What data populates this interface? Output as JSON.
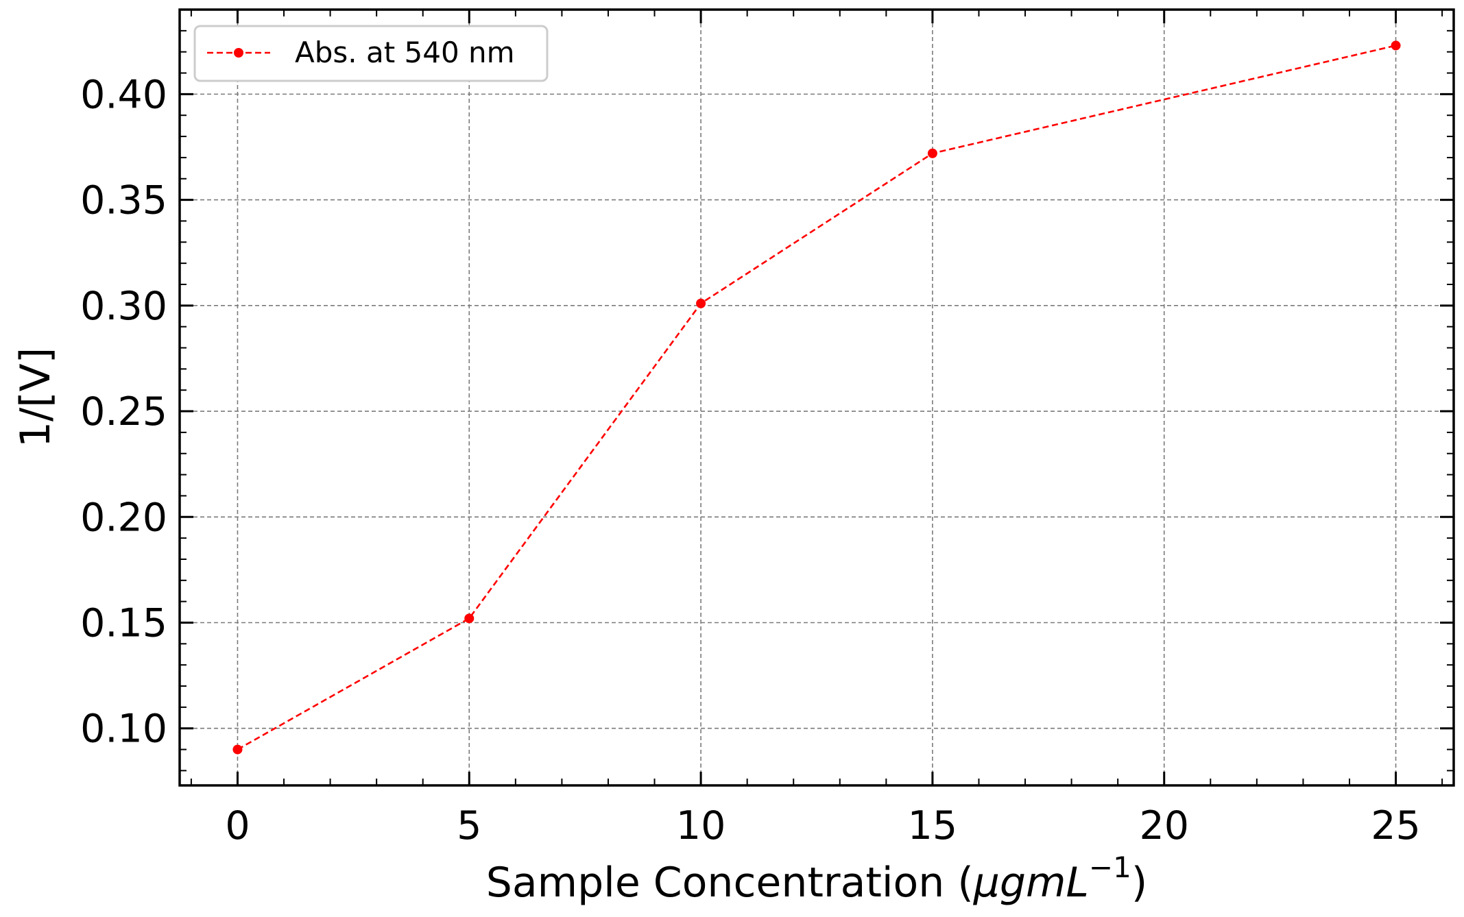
{
  "chart_data": {
    "type": "line",
    "title": "",
    "xlabel": {
      "text": "Sample Concentration (",
      "math": "μgmL",
      "exponent": "−1",
      "close": ")"
    },
    "ylabel": "1/[V]",
    "xlim": [
      -1.25,
      26.25
    ],
    "ylim": [
      0.073,
      0.44
    ],
    "xticks": [
      0,
      5,
      10,
      15,
      20,
      25
    ],
    "xtick_labels": [
      "0",
      "5",
      "10",
      "15",
      "20",
      "25"
    ],
    "yticks": [
      0.1,
      0.15,
      0.2,
      0.25,
      0.3,
      0.35,
      0.4
    ],
    "ytick_labels": [
      "0.10",
      "0.15",
      "0.20",
      "0.25",
      "0.30",
      "0.35",
      "0.40"
    ],
    "grid": true,
    "legend_position": "top-left",
    "series": [
      {
        "name": "Abs. at 540 nm",
        "color": "#ff0000",
        "line_style": "dashed",
        "marker": "circle",
        "x": [
          0,
          5,
          10,
          15,
          25
        ],
        "y": [
          0.09,
          0.152,
          0.301,
          0.372,
          0.423
        ]
      }
    ]
  }
}
